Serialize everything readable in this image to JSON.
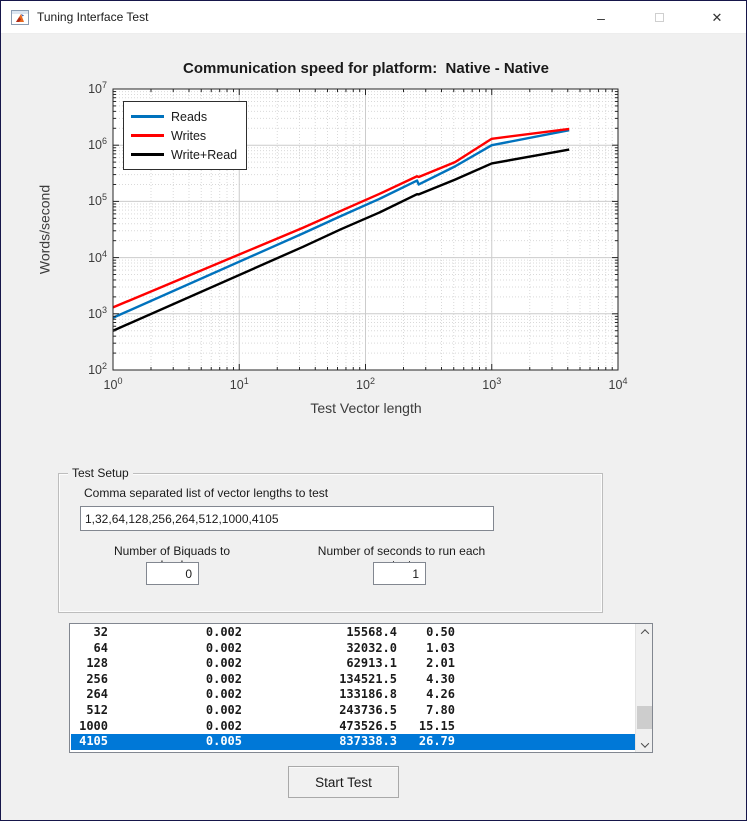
{
  "window": {
    "title": "Tuning Interface Test",
    "controls": {
      "minimize": "–",
      "maximize": "",
      "close": "✕"
    }
  },
  "chart_data": {
    "type": "line",
    "x_scale": "log",
    "y_scale": "log",
    "title": "Communication speed for platform:  Native - Native",
    "xlabel": "Test Vector length",
    "ylabel": "Words/second",
    "xlim": [
      1,
      10000
    ],
    "ylim": [
      100,
      10000000
    ],
    "x_tick_exponents": [
      0,
      1,
      2,
      3,
      4
    ],
    "y_tick_exponents": [
      2,
      3,
      4,
      5,
      6,
      7
    ],
    "grid": true,
    "legend_position": "top-left",
    "x": [
      1,
      32,
      64,
      128,
      256,
      264,
      512,
      1000,
      4105
    ],
    "series": [
      {
        "name": "Reads",
        "color": "#0072BD",
        "values": [
          850,
          27000,
          55000,
          110000,
          235000,
          200000,
          420000,
          1000000,
          1850000
        ]
      },
      {
        "name": "Writes",
        "color": "#FF0000",
        "values": [
          1300,
          34000,
          68000,
          135000,
          280000,
          272000,
          500000,
          1300000,
          1950000
        ]
      },
      {
        "name": "Write+Read",
        "color": "#000000",
        "values": [
          500,
          15568.4,
          32032.0,
          62913.1,
          134521.5,
          133186.8,
          243736.5,
          473526.5,
          837338.3
        ]
      }
    ]
  },
  "test_setup": {
    "group_label": "Test Setup",
    "vector_list_label": "Comma separated list of vector lengths to test",
    "vector_list_value": "1,32,64,128,256,264,512,1000,4105",
    "biquads_label": "Number of Biquads to load",
    "biquads_value": "0",
    "seconds_label": "Number of seconds to run each test",
    "seconds_value": "1"
  },
  "results_list": {
    "rows": [
      [
        "32",
        "0.002",
        "15568.4",
        "0.50"
      ],
      [
        "64",
        "0.002",
        "32032.0",
        "1.03"
      ],
      [
        "128",
        "0.002",
        "62913.1",
        "2.01"
      ],
      [
        "256",
        "0.002",
        "134521.5",
        "4.30"
      ],
      [
        "264",
        "0.002",
        "133186.8",
        "4.26"
      ],
      [
        "512",
        "0.002",
        "243736.5",
        "7.80"
      ],
      [
        "1000",
        "0.002",
        "473526.5",
        "15.15"
      ],
      [
        "4105",
        "0.005",
        "837338.3",
        "26.79"
      ]
    ],
    "selected_row_index": 7,
    "selection_color": "#0078D7"
  },
  "start_button_label": "Start Test"
}
